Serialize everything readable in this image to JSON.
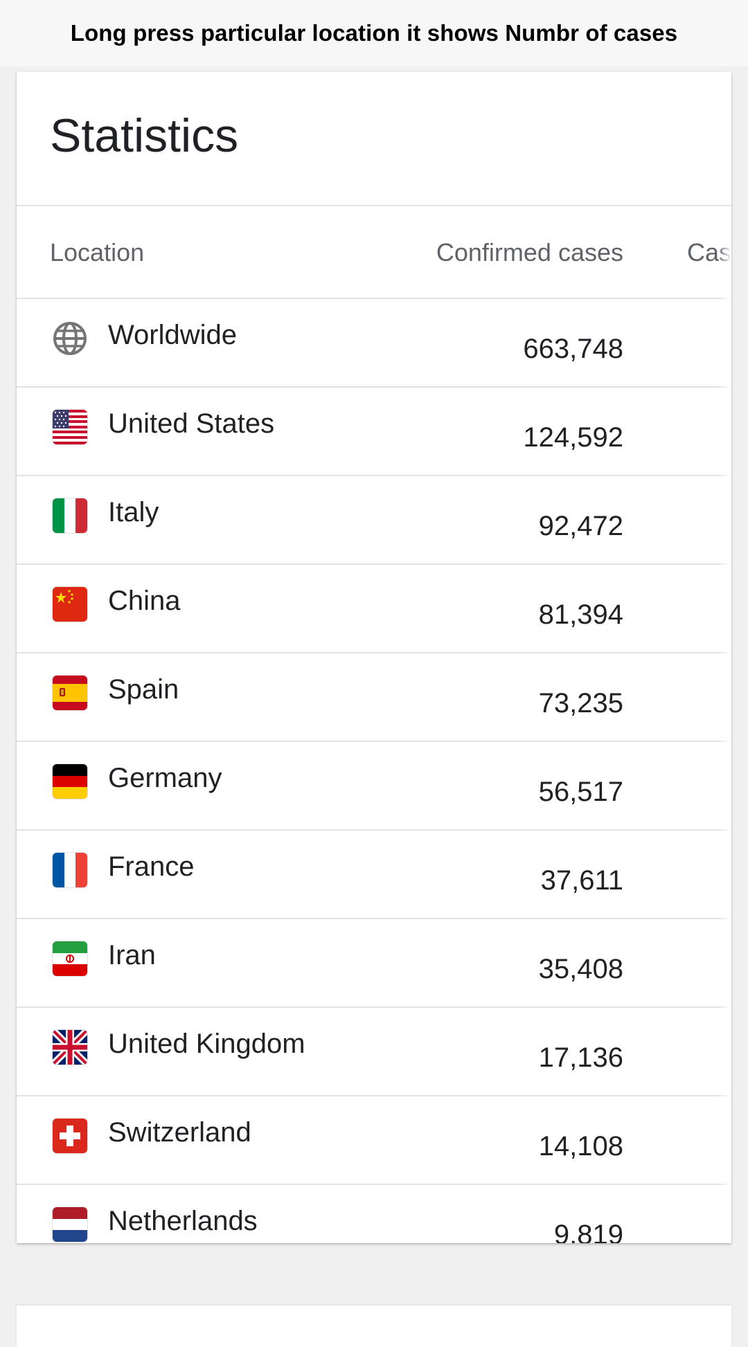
{
  "banner": {
    "text": "Long press particular location it shows Numbr of cases"
  },
  "card": {
    "title": "Statistics",
    "columns": {
      "location": "Location",
      "confirmed": "Confirmed cases",
      "cases_partial": "Cas"
    },
    "rows": [
      {
        "name": "Worldwide",
        "value": "663,748",
        "icon": "globe-icon"
      },
      {
        "name": "United States",
        "value": "124,592",
        "icon": "us-flag-icon"
      },
      {
        "name": "Italy",
        "value": "92,472",
        "icon": "italy-flag-icon"
      },
      {
        "name": "China",
        "value": "81,394",
        "icon": "china-flag-icon"
      },
      {
        "name": "Spain",
        "value": "73,235",
        "icon": "spain-flag-icon"
      },
      {
        "name": "Germany",
        "value": "56,517",
        "icon": "germany-flag-icon"
      },
      {
        "name": "France",
        "value": "37,611",
        "icon": "france-flag-icon"
      },
      {
        "name": "Iran",
        "value": "35,408",
        "icon": "iran-flag-icon"
      },
      {
        "name": "United Kingdom",
        "value": "17,136",
        "icon": "uk-flag-icon"
      },
      {
        "name": "Switzerland",
        "value": "14,108",
        "icon": "switzerland-flag-icon"
      },
      {
        "name": "Netherlands",
        "value": "9,819",
        "icon": "netherlands-flag-icon"
      }
    ]
  }
}
